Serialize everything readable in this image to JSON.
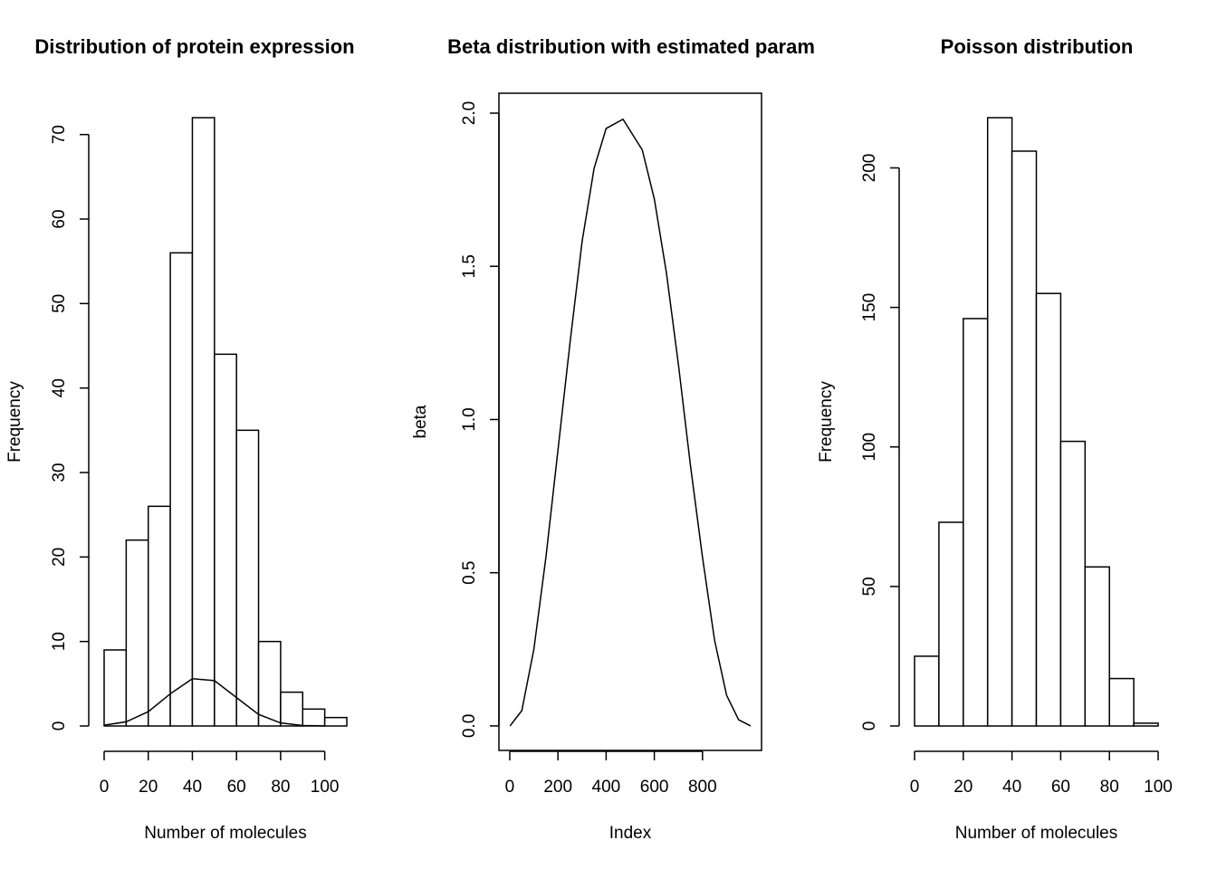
{
  "chart_data": [
    {
      "type": "histogram",
      "title": "Distribution of protein expression",
      "xlabel": "Number of molecules",
      "ylabel": "Frequency",
      "bins": [
        0,
        10,
        20,
        30,
        40,
        50,
        60,
        70,
        80,
        90,
        100,
        110
      ],
      "values": [
        9,
        22,
        26,
        56,
        72,
        44,
        35,
        10,
        4,
        2,
        1
      ],
      "curve": {
        "x": [
          0,
          10,
          20,
          30,
          40,
          50,
          60,
          70,
          80,
          90,
          100
        ],
        "values": [
          0.09,
          0.49,
          1.69,
          3.81,
          5.6,
          5.37,
          3.36,
          1.37,
          0.36,
          0.06,
          0.01
        ]
      },
      "xlim": [
        0,
        110
      ],
      "ylim": [
        0,
        72
      ],
      "xticks": [
        0,
        20,
        40,
        60,
        80,
        100
      ],
      "yticks": [
        0,
        10,
        20,
        30,
        40,
        50,
        60,
        70
      ]
    },
    {
      "type": "line",
      "title": "Beta distribution with estimated param",
      "xlabel": "Index",
      "ylabel": "beta",
      "x": [
        1,
        50,
        100,
        150,
        200,
        250,
        300,
        350,
        400,
        470,
        550,
        600,
        650,
        700,
        750,
        800,
        850,
        900,
        950,
        1000
      ],
      "values": [
        0,
        0.05,
        0.25,
        0.55,
        0.9,
        1.25,
        1.58,
        1.82,
        1.95,
        1.98,
        1.88,
        1.72,
        1.48,
        1.18,
        0.85,
        0.55,
        0.28,
        0.1,
        0.02,
        0
      ],
      "xlim": [
        -45,
        1045
      ],
      "ylim": [
        -0.08,
        2.065
      ],
      "xticks": [
        0,
        200,
        400,
        600,
        800
      ],
      "yticks": [
        {
          "value": 0,
          "label": "0.0"
        },
        {
          "value": 0.5,
          "label": "0.5"
        },
        {
          "value": 1,
          "label": "1.0"
        },
        {
          "value": 1.5,
          "label": "1.5"
        },
        {
          "value": 2,
          "label": "2.0"
        }
      ]
    },
    {
      "type": "histogram",
      "title": "Poisson distribution",
      "xlabel": "Number of molecules",
      "ylabel": "Frequency",
      "bins": [
        0,
        10,
        20,
        30,
        40,
        50,
        60,
        70,
        80,
        90,
        100
      ],
      "values": [
        25,
        73,
        146,
        218,
        206,
        155,
        102,
        57,
        17,
        1
      ],
      "xlim": [
        0,
        100
      ],
      "ylim": [
        0,
        218
      ],
      "xticks": [
        0,
        20,
        40,
        60,
        80,
        100
      ],
      "yticks": [
        0,
        50,
        100,
        150,
        200
      ]
    }
  ]
}
